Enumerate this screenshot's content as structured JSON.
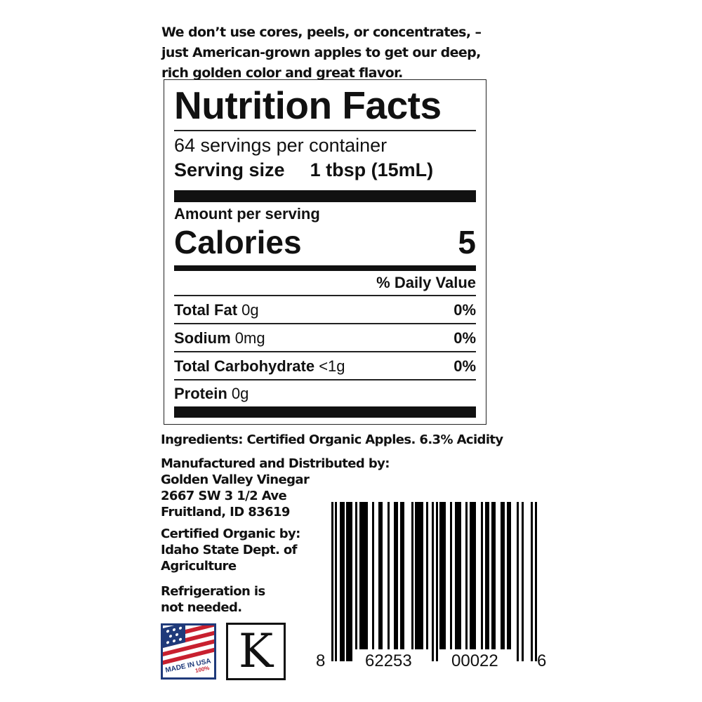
{
  "intro": [
    "We don’t use cores, peels, or  concentrates, –",
    "just American-grown apples to get our deep,",
    "rich golden color and great flavor."
  ],
  "label": {
    "title": "Nutrition Facts",
    "servings": "64 servings per container",
    "serving_size_label": "Serving size",
    "serving_size_value": "1 tbsp (15mL)",
    "amount_per_serving": "Amount per serving",
    "calories_label": "Calories",
    "calories_value": "5",
    "daily_value_header": "% Daily Value",
    "nutrients": [
      {
        "name": "Total Fat",
        "amount": "0g",
        "dv": "0%"
      },
      {
        "name": "Sodium",
        "amount": "0mg",
        "dv": "0%"
      },
      {
        "name": "Total Carbohydrate",
        "amount": "<1g",
        "dv": "0%"
      },
      {
        "name": "Protein",
        "amount": "0g",
        "dv": ""
      }
    ]
  },
  "ingredients": "Ingredients: Certified Organic Apples. 6.3% Acidity",
  "manufacturer": [
    "Manufactured and Distributed by:",
    "Golden Valley Vinegar",
    "2667 SW 3 1/2 Ave",
    "Fruitland, ID 83619"
  ],
  "certified": [
    "Certified Organic by:",
    "Idaho State Dept. of",
    "Agriculture"
  ],
  "refrigeration": [
    "Refrigeration is",
    "not needed."
  ],
  "logos": {
    "usa_text": "MADE IN USA",
    "usa_pct": "100%",
    "kosher": "K",
    "flag_red": "#c8202f",
    "flag_blue": "#1f3a7a"
  },
  "barcode": {
    "d1": "8",
    "d2": "62253",
    "d3": "00022",
    "d4": "6"
  }
}
